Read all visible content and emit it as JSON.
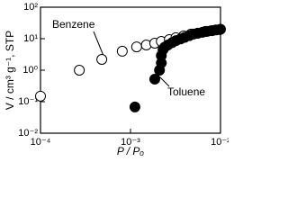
{
  "chart_data": {
    "type": "scatter",
    "x_label": "P / Pₒ",
    "y_label": "V / cm³ g⁻¹, STP",
    "annotations": [
      "Benzene",
      "Toluene"
    ],
    "xlog": true,
    "ylog": true,
    "xlim": [
      0.0001,
      0.01
    ],
    "ylim": [
      0.01,
      100
    ],
    "xticks": [
      {
        "value": 0.0001,
        "label": "10⁻⁴"
      },
      {
        "value": 0.001,
        "label": "10⁻³"
      },
      {
        "value": 0.01,
        "label": "10⁻²"
      }
    ],
    "yticks": [
      {
        "value": 0.01,
        "label": "10⁻²"
      },
      {
        "value": 0.1,
        "label": "10⁻¹"
      },
      {
        "value": 1,
        "label": "10⁰"
      },
      {
        "value": 10,
        "label": "10¹"
      },
      {
        "value": 100,
        "label": "10²"
      }
    ],
    "series": [
      {
        "name": "Benzene",
        "color": "#000000",
        "filled": false,
        "x": [
          0.0001,
          0.00027,
          0.00048,
          0.00081,
          0.00117,
          0.0015,
          0.00186,
          0.0022,
          0.0027,
          0.0032,
          0.0039,
          0.0047,
          0.0056,
          0.0068,
          0.0081,
          0.0098
        ],
        "values": [
          0.15,
          1.0,
          2.2,
          4.0,
          5.5,
          6.3,
          7.2,
          8.2,
          9.4,
          10.8,
          12.3,
          14,
          15,
          17,
          18,
          19.5
        ]
      },
      {
        "name": "Toluene",
        "color": "#000000",
        "filled": true,
        "x": [
          0.00112,
          0.00186,
          0.0021,
          0.0022,
          0.0022,
          0.0023,
          0.0024,
          0.0026,
          0.0029,
          0.0032,
          0.0036,
          0.004,
          0.0045,
          0.005,
          0.0056,
          0.0063,
          0.0071,
          0.0079,
          0.0089,
          0.01
        ],
        "values": [
          0.068,
          0.52,
          1.0,
          1.7,
          2.9,
          4.5,
          5.4,
          6.3,
          7.5,
          8.7,
          9.8,
          11,
          12.5,
          14,
          15,
          16,
          17,
          18,
          19,
          20
        ]
      }
    ]
  }
}
